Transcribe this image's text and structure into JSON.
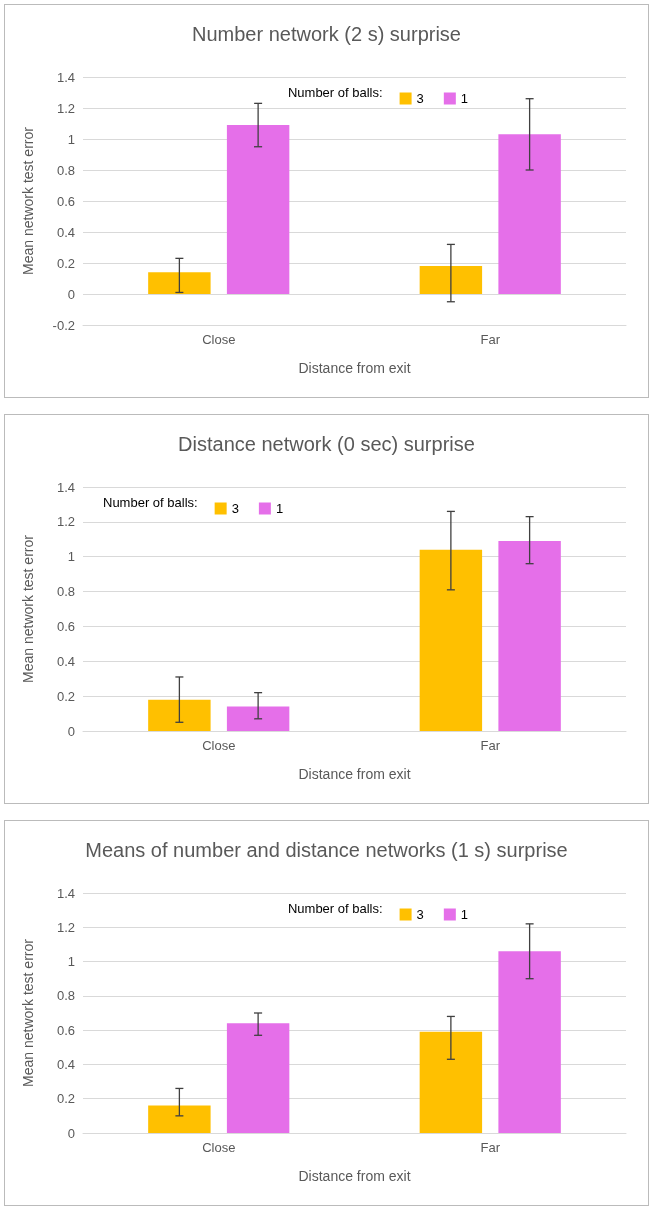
{
  "chart_data": [
    {
      "type": "bar",
      "title": "Number network (2 s) surprise",
      "xlabel": "Distance from exit",
      "ylabel": "Mean network test error",
      "legend_title": "Number of balls:",
      "categories": [
        "Close",
        "Far"
      ],
      "series": [
        {
          "name": "3",
          "color": "#ffc000",
          "values": [
            0.14,
            0.18
          ],
          "errors": [
            [
              0.01,
              0.23
            ],
            [
              -0.05,
              0.32
            ]
          ]
        },
        {
          "name": "1",
          "color": "#e56fe9",
          "values": [
            1.09,
            1.03
          ],
          "errors": [
            [
              0.95,
              1.23
            ],
            [
              0.8,
              1.26
            ]
          ]
        }
      ],
      "ylim": [
        -0.2,
        1.4
      ],
      "yticks": [
        -0.2,
        0,
        0.2,
        0.4,
        0.6,
        0.8,
        1,
        1.2,
        1.4
      ],
      "grid": "y",
      "legend": "top"
    },
    {
      "type": "bar",
      "title": "Distance network (0 sec) surprise",
      "xlabel": "Distance from exit",
      "ylabel": "Mean network test error",
      "legend_title": "Number of balls:",
      "categories": [
        "Close",
        "Far"
      ],
      "series": [
        {
          "name": "3",
          "color": "#ffc000",
          "values": [
            0.18,
            1.04
          ],
          "errors": [
            [
              0.05,
              0.31
            ],
            [
              0.81,
              1.26
            ]
          ]
        },
        {
          "name": "1",
          "color": "#e56fe9",
          "values": [
            0.14,
            1.09
          ],
          "errors": [
            [
              0.07,
              0.22
            ],
            [
              0.96,
              1.23
            ]
          ]
        }
      ],
      "ylim": [
        0,
        1.4
      ],
      "yticks": [
        0,
        0.2,
        0.4,
        0.6,
        0.8,
        1,
        1.2,
        1.4
      ],
      "grid": "y",
      "legend": "top left"
    },
    {
      "type": "bar",
      "title": "Means of number and distance networks (1 s) surprise",
      "xlabel": "Distance from exit",
      "ylabel": "Mean network test error",
      "legend_title": "Number of balls:",
      "categories": [
        "Close",
        "Far"
      ],
      "series": [
        {
          "name": "3",
          "color": "#ffc000",
          "values": [
            0.16,
            0.59
          ],
          "errors": [
            [
              0.1,
              0.26
            ],
            [
              0.43,
              0.68
            ]
          ]
        },
        {
          "name": "1",
          "color": "#e56fe9",
          "values": [
            0.64,
            1.06
          ],
          "errors": [
            [
              0.57,
              0.7
            ],
            [
              0.9,
              1.22
            ]
          ]
        }
      ],
      "ylim": [
        0,
        1.4
      ],
      "yticks": [
        0,
        0.2,
        0.4,
        0.6,
        0.8,
        1,
        1.2,
        1.4
      ],
      "grid": "y",
      "legend": "top"
    }
  ]
}
